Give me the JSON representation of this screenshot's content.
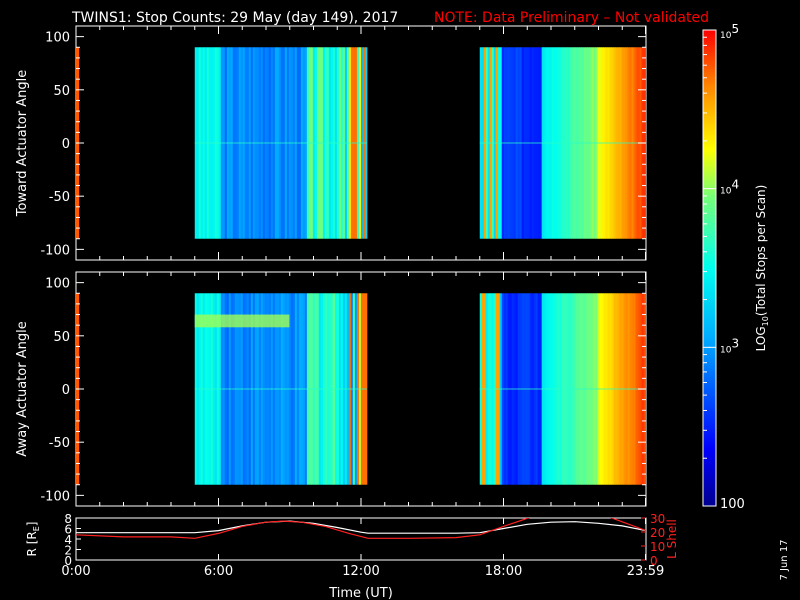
{
  "title": {
    "main": "TWINS1: Stop Counts: 29 May (day 149), 2017",
    "note": "NOTE: Data Preliminary – Not validated"
  },
  "stamp": "7 Jun 17",
  "colors": {
    "background": "#000000",
    "axes": "#ffffff",
    "note": "#ff0000",
    "lshell": "#ff2020",
    "radius": "#ffffff"
  },
  "chart_data": [
    {
      "type": "heatmap",
      "ylabel": "Toward Actuator Angle",
      "ylim": [
        -110,
        110
      ],
      "yticks": [
        100,
        50,
        0,
        -50,
        -100
      ],
      "xlim": [
        0,
        24
      ],
      "data_blocks": [
        {
          "x": [
            5.0,
            12.25
          ],
          "y": [
            -90,
            90
          ]
        },
        {
          "x": [
            17.0,
            23.98
          ],
          "y": [
            -90,
            90
          ]
        },
        {
          "x": [
            0.0,
            0.12
          ],
          "y": [
            -90,
            90
          ]
        }
      ],
      "note": "log10 counts vs time (UT) and actuator angle"
    },
    {
      "type": "heatmap",
      "ylabel": "Away Actuator Angle",
      "ylim": [
        -110,
        110
      ],
      "yticks": [
        100,
        50,
        0,
        -50,
        -100
      ],
      "xlim": [
        0,
        24
      ],
      "data_blocks": [
        {
          "x": [
            5.0,
            12.25
          ],
          "y": [
            -90,
            90
          ]
        },
        {
          "x": [
            17.0,
            23.98
          ],
          "y": [
            -90,
            90
          ]
        },
        {
          "x": [
            0.0,
            0.12
          ],
          "y": [
            -90,
            90
          ]
        }
      ]
    },
    {
      "type": "line",
      "ylabel_left": "R [R",
      "ylabel_left_sub": "E",
      "ylabel_left_end": "]",
      "ylabel_right": "L Shell",
      "ylim_left": [
        0,
        8
      ],
      "yticks_left": [
        0,
        2,
        4,
        6,
        8
      ],
      "ylim_right": [
        0,
        30
      ],
      "yticks_right": [
        0,
        10,
        20,
        30
      ],
      "xlabel": "Time (UT)",
      "xlim": [
        0,
        24
      ],
      "xtick_labels": [
        "0:00",
        "6:00",
        "12:00",
        "18:00",
        "23:59"
      ],
      "xtick_values": [
        0,
        6,
        12,
        18,
        23.98
      ],
      "series": [
        {
          "axis": "left",
          "color": "#ffffff",
          "x": [
            0,
            2,
            4,
            5,
            6,
            7,
            8,
            9,
            10,
            11,
            12,
            12.3,
            14,
            16,
            17,
            18,
            19,
            20,
            21,
            22,
            23,
            24
          ],
          "y": [
            5.2,
            5.2,
            5.2,
            5.2,
            5.6,
            6.5,
            7.2,
            7.4,
            7.0,
            6.2,
            5.3,
            5.1,
            5.1,
            5.1,
            5.2,
            6.0,
            6.8,
            7.2,
            7.3,
            7.0,
            6.5,
            5.6
          ]
        },
        {
          "axis": "right",
          "color": "#ff2020",
          "x": [
            0,
            2,
            4,
            5,
            6,
            7,
            8,
            8.7,
            9.5,
            10.5,
            11.5,
            12.3,
            14,
            16,
            17,
            18,
            18.7,
            19.2
          ],
          "y": [
            18,
            16.5,
            16.5,
            15.5,
            19,
            24,
            27,
            27.8,
            27,
            24,
            19,
            15.5,
            15.5,
            16,
            18,
            24,
            28,
            31
          ]
        },
        {
          "axis": "right",
          "color": "#ff2020",
          "x": [
            22.4,
            23.2,
            24
          ],
          "y": [
            31,
            26,
            21
          ]
        }
      ]
    },
    {
      "type": "heatmap",
      "name": "colorbar",
      "ylabel": "LOG",
      "ylabel_sub": "10",
      "ylabel_end": "(Total Stops per Scan)",
      "ylim": [
        100,
        100000
      ],
      "scale": "log",
      "tick_labels": [
        {
          "base": "10",
          "exp": "5"
        },
        {
          "base": "10",
          "exp": "4"
        },
        {
          "base": "10",
          "exp": "3"
        },
        {
          "base": "100",
          "exp": ""
        }
      ],
      "tick_values": [
        100000,
        10000,
        1000,
        100
      ]
    }
  ]
}
